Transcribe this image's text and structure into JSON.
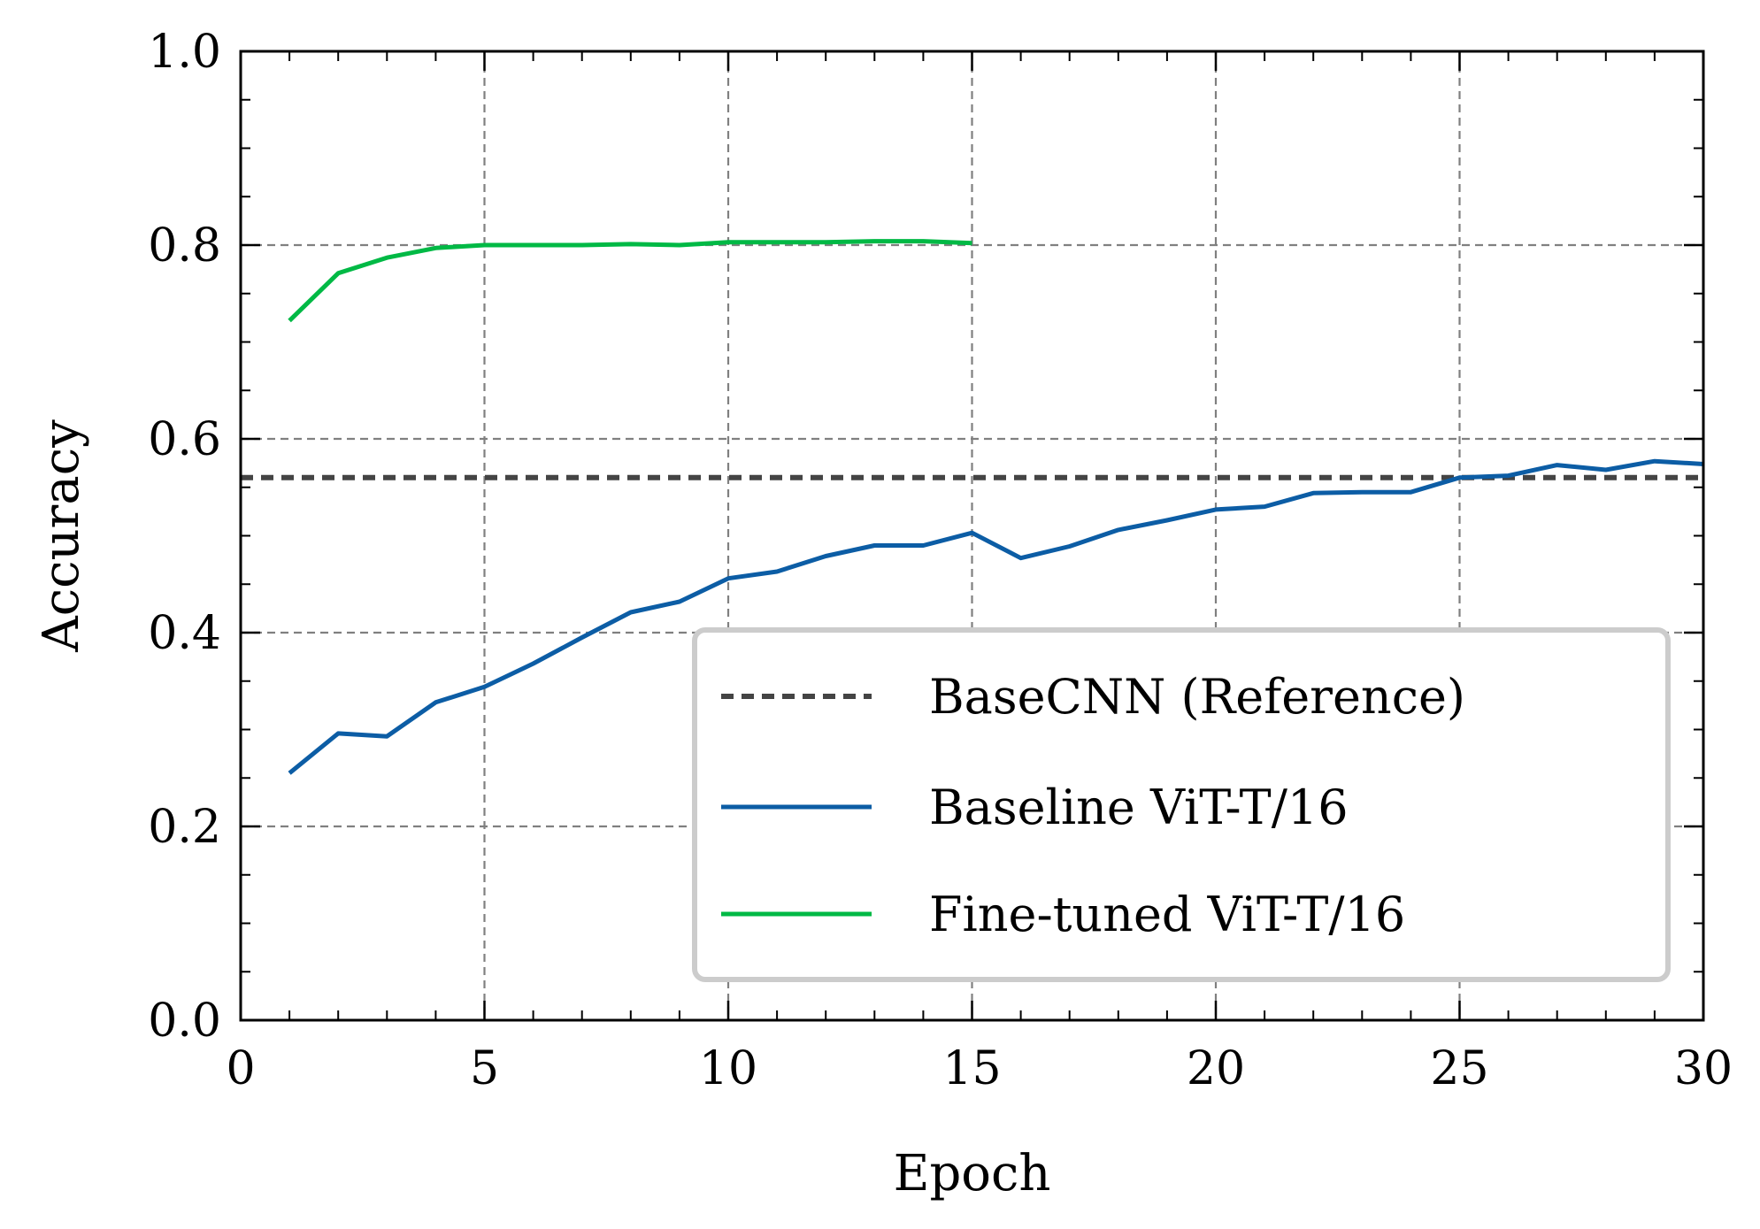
{
  "chart_data": {
    "type": "line",
    "xlabel": "Epoch",
    "ylabel": "Accuracy",
    "xlim": [
      0,
      30
    ],
    "ylim": [
      0.0,
      1.0
    ],
    "x_ticks": [
      "0",
      "5",
      "10",
      "15",
      "20",
      "25",
      "30"
    ],
    "y_ticks": [
      "0.0",
      "0.2",
      "0.4",
      "0.6",
      "0.8",
      "1.0"
    ],
    "grid": true,
    "legend_position": "lower-right",
    "reference": {
      "name": "BaseCNN (Reference)",
      "value": 0.56,
      "color": "#444444",
      "style": "dashed"
    },
    "series": [
      {
        "name": "Baseline ViT-T/16",
        "color": "#0C5DA5",
        "x": [
          1,
          2,
          3,
          4,
          5,
          6,
          7,
          8,
          9,
          10,
          11,
          12,
          13,
          14,
          15,
          16,
          17,
          18,
          19,
          20,
          21,
          22,
          23,
          24,
          25,
          26,
          27,
          28,
          29,
          30
        ],
        "y": [
          0.255,
          0.296,
          0.293,
          0.328,
          0.344,
          0.368,
          0.395,
          0.421,
          0.432,
          0.456,
          0.463,
          0.479,
          0.49,
          0.49,
          0.503,
          0.477,
          0.489,
          0.506,
          0.516,
          0.527,
          0.53,
          0.544,
          0.545,
          0.545,
          0.56,
          0.562,
          0.573,
          0.568,
          0.577,
          0.574
        ]
      },
      {
        "name": "Fine-tuned ViT-T/16",
        "color": "#00B945",
        "x": [
          1,
          2,
          3,
          4,
          5,
          6,
          7,
          8,
          9,
          10,
          11,
          12,
          13,
          14,
          15
        ],
        "y": [
          0.722,
          0.771,
          0.787,
          0.797,
          0.8,
          0.8,
          0.8,
          0.801,
          0.8,
          0.803,
          0.803,
          0.803,
          0.804,
          0.804,
          0.802
        ]
      }
    ]
  }
}
